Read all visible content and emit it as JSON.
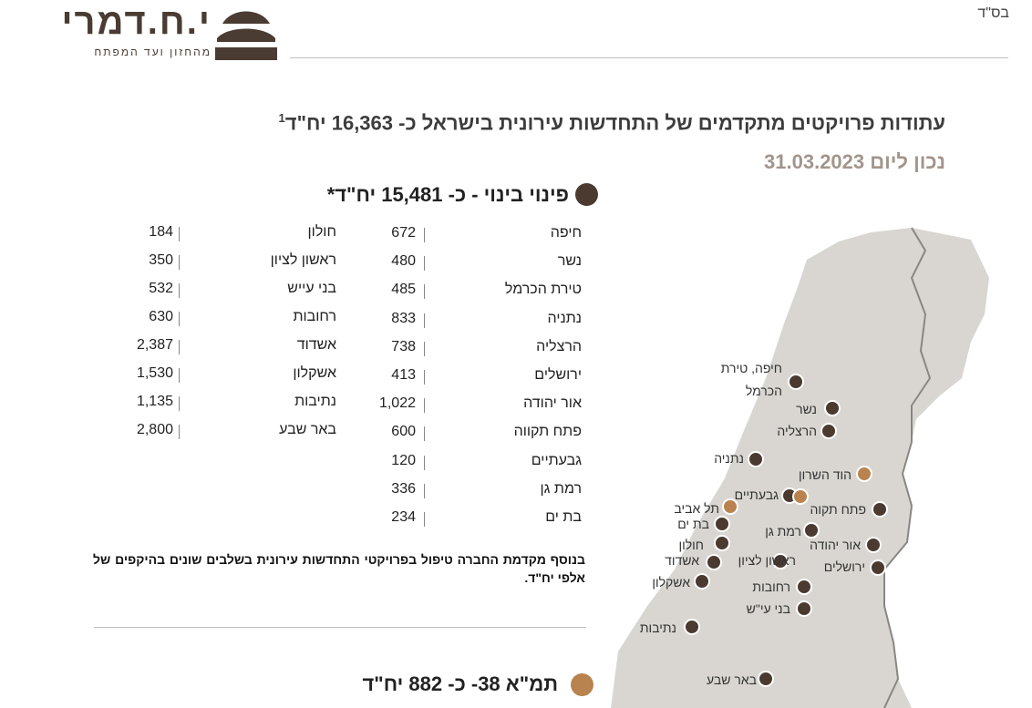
{
  "header": {
    "logo_name": "י.ח.דמרי",
    "logo_tagline": "מהחזון ועד המפתח",
    "bsd": "בס\"ד"
  },
  "title": {
    "main": "עתודות פרויקטים מתקדמים של התחדשות עירונית בישראל כ- 16,363 יח\"ד",
    "footnote": "1",
    "date": "נכון ליום 31.03.2023"
  },
  "colors": {
    "dark": "#4a3a30",
    "tan": "#b8834f",
    "map": "#d9d6d2"
  },
  "pinui": {
    "heading": "פינוי בינוי - כ- 15,481 יח\"ד*",
    "col_right": [
      {
        "name": "חיפה",
        "value": "672"
      },
      {
        "name": "נשר",
        "value": "480"
      },
      {
        "name": "טירת הכרמל",
        "value": "485"
      },
      {
        "name": "נתניה",
        "value": "833"
      },
      {
        "name": "הרצליה",
        "value": "738"
      },
      {
        "name": "ירושלים",
        "value": "413"
      },
      {
        "name": "אור יהודה",
        "value": "1,022"
      },
      {
        "name": "פתח תקווה",
        "value": "600"
      },
      {
        "name": "גבעתיים",
        "value": "120"
      },
      {
        "name": "רמת גן",
        "value": "336"
      },
      {
        "name": "בת ים",
        "value": "234"
      }
    ],
    "col_left": [
      {
        "name": "חולון",
        "value": "184"
      },
      {
        "name": "ראשון לציון",
        "value": "350"
      },
      {
        "name": "בני עייש",
        "value": "532"
      },
      {
        "name": "רחובות",
        "value": "630"
      },
      {
        "name": "אשדוד",
        "value": "2,387"
      },
      {
        "name": "אשקלון",
        "value": "1,530"
      },
      {
        "name": "נתיבות",
        "value": "1,135"
      },
      {
        "name": "באר שבע",
        "value": "2,800"
      }
    ],
    "note": "בנוסף מקדמת החברה טיפול בפרויקטי התחדשות עירונית בשלבים שונים בהיקפים של אלפי יח\"ד."
  },
  "tama": {
    "heading": "תמ\"א 38- כ- 882 יח\"ד"
  },
  "map": {
    "labels": {
      "haifa": "חיפה, טירת",
      "carmel": "הכרמל",
      "nesher": "נשר",
      "herzliya": "הרצליה",
      "netanya": "נתניה",
      "hod": "הוד השרון",
      "givatayim": "גבעתיים",
      "telaviv": "תל אביב",
      "petah": "פתח תקוה",
      "batyam": "בת ים",
      "ramatgan": "רמת גן",
      "holon": "חולון",
      "oryehuda": "אור יהודה",
      "ashdod": "אשדוד",
      "rishon": "ראשון לציון",
      "jerusalem": "ירושלים",
      "ashkelon": "אשקלון",
      "rehovot": "רחובות",
      "beneiayish": "בני עי\"ש",
      "netivot": "נתיבות",
      "beersheva": "באר שבע"
    }
  }
}
